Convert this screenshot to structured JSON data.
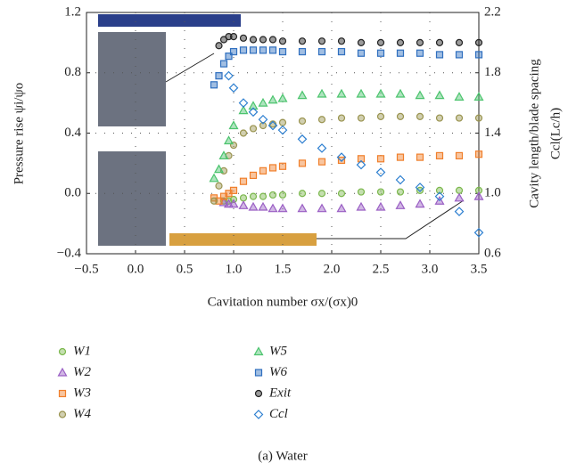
{
  "chart_data": {
    "type": "scatter",
    "ylabel": "Pressure rise ψi/ψo",
    "y2label": "Cavity length/blade spacing",
    "y2label2": "Ccl(Lc/h)",
    "xlabel": "Cavitation number σx/(σx)0",
    "caption": "(a) Water",
    "x": [
      0.8,
      0.85,
      0.9,
      0.95,
      1.0,
      1.1,
      1.2,
      1.3,
      1.4,
      1.5,
      1.7,
      1.9,
      2.1,
      2.3,
      2.5,
      2.7,
      2.9,
      3.1,
      3.3,
      3.5
    ],
    "xlim": [
      -0.5,
      3.5
    ],
    "xticks": [
      {
        "value": -0.5,
        "label": "−0.5"
      },
      {
        "value": 0,
        "label": "0.0"
      },
      {
        "value": 0.5,
        "label": "0.5"
      },
      {
        "value": 1,
        "label": "1.0"
      },
      {
        "value": 1.5,
        "label": "1.5"
      },
      {
        "value": 2,
        "label": "2.0"
      },
      {
        "value": 2.5,
        "label": "2.5"
      },
      {
        "value": 3,
        "label": "3.0"
      },
      {
        "value": 3.5,
        "label": "3.5"
      }
    ],
    "ylim": [
      -0.4,
      1.2
    ],
    "yticks": [
      {
        "value": -0.4,
        "label": "−0.4"
      },
      {
        "value": 0,
        "label": "0.0"
      },
      {
        "value": 0.4,
        "label": "0.4"
      },
      {
        "value": 0.8,
        "label": "0.8"
      },
      {
        "value": 1.2,
        "label": "1.2"
      }
    ],
    "y2lim": [
      0.6,
      2.2
    ],
    "y2ticks": [
      {
        "value": 0.6,
        "label": "0.6"
      },
      {
        "value": 1,
        "label": "1.0"
      },
      {
        "value": 1.4,
        "label": "1.4"
      },
      {
        "value": 1.8,
        "label": "1.8"
      },
      {
        "value": 2.2,
        "label": "2.2"
      }
    ],
    "grid": true,
    "series": [
      {
        "name": "W1",
        "color": "#7cb84e",
        "marker": "circle",
        "values": [
          null,
          null,
          -0.05,
          -0.05,
          -0.04,
          -0.03,
          -0.02,
          -0.02,
          -0.01,
          -0.01,
          0.0,
          0.0,
          0.0,
          0.01,
          0.01,
          0.01,
          0.02,
          0.02,
          0.02,
          0.02
        ]
      },
      {
        "name": "W2",
        "color": "#9a5fc4",
        "marker": "triangle",
        "values": [
          null,
          null,
          -0.06,
          -0.07,
          -0.07,
          -0.08,
          -0.09,
          -0.09,
          -0.1,
          -0.1,
          -0.1,
          -0.1,
          -0.1,
          -0.09,
          -0.09,
          -0.08,
          -0.07,
          -0.05,
          -0.03,
          -0.02
        ]
      },
      {
        "name": "W3",
        "color": "#f07f2b",
        "marker": "square",
        "values": [
          -0.03,
          -0.05,
          -0.02,
          0.0,
          0.02,
          0.08,
          0.12,
          0.15,
          0.17,
          0.18,
          0.2,
          0.21,
          0.22,
          0.23,
          0.23,
          0.24,
          0.24,
          0.25,
          0.25,
          0.26
        ]
      },
      {
        "name": "W4",
        "color": "#9a9450",
        "marker": "circle",
        "values": [
          -0.05,
          0.05,
          0.15,
          0.25,
          0.32,
          0.4,
          0.43,
          0.45,
          0.46,
          0.47,
          0.48,
          0.49,
          0.5,
          0.5,
          0.51,
          0.51,
          0.51,
          0.5,
          0.5,
          0.5
        ]
      },
      {
        "name": "W5",
        "color": "#4cc46e",
        "marker": "triangle",
        "values": [
          0.1,
          0.16,
          0.25,
          0.35,
          0.45,
          0.55,
          0.58,
          0.6,
          0.62,
          0.63,
          0.65,
          0.66,
          0.66,
          0.66,
          0.66,
          0.66,
          0.65,
          0.65,
          0.64,
          0.64
        ]
      },
      {
        "name": "W6",
        "color": "#2f6fbf",
        "marker": "square",
        "values": [
          0.72,
          0.78,
          0.86,
          0.91,
          0.94,
          0.95,
          0.95,
          0.95,
          0.95,
          0.94,
          0.94,
          0.94,
          0.94,
          0.93,
          0.93,
          0.93,
          0.93,
          0.92,
          0.92,
          0.92
        ]
      },
      {
        "name": "Exit",
        "color": "#222222",
        "marker": "circle",
        "values": [
          null,
          0.98,
          1.02,
          1.04,
          1.04,
          1.03,
          1.02,
          1.02,
          1.02,
          1.01,
          1.01,
          1.01,
          1.01,
          1.0,
          1.0,
          1.0,
          1.0,
          1.0,
          1.0,
          1.0
        ]
      },
      {
        "name": "Ccl",
        "color": "#2d7fd0",
        "marker": "diamond",
        "axis": "y2",
        "values": [
          null,
          null,
          null,
          1.78,
          1.7,
          1.6,
          1.54,
          1.49,
          1.45,
          1.42,
          1.36,
          1.3,
          1.24,
          1.19,
          1.14,
          1.09,
          1.04,
          0.98,
          0.88,
          0.74
        ]
      }
    ]
  }
}
